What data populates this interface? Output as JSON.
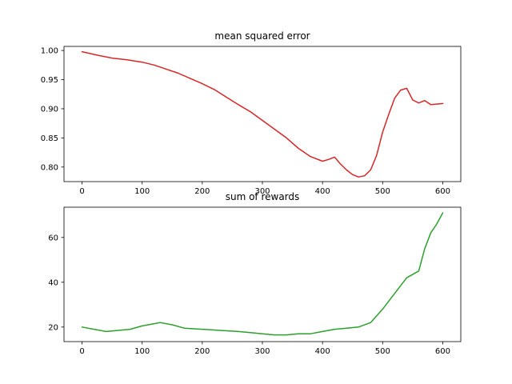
{
  "chart_data": [
    {
      "type": "line",
      "title": "mean squared error",
      "xlabel": "",
      "ylabel": "",
      "xlim": [
        -30,
        630
      ],
      "ylim": [
        0.775,
        1.007
      ],
      "xticks": [
        0,
        100,
        200,
        300,
        400,
        500,
        600
      ],
      "yticks": [
        0.8,
        0.85,
        0.9,
        0.95,
        1.0
      ],
      "ytick_labels": [
        "0.80",
        "0.85",
        "0.90",
        "0.95",
        "1.00"
      ],
      "grid": false,
      "color": "#d62728",
      "series": [
        {
          "x": [
            0,
            25,
            50,
            75,
            100,
            120,
            140,
            160,
            180,
            200,
            220,
            240,
            260,
            280,
            300,
            320,
            340,
            360,
            380,
            400,
            410,
            420,
            430,
            440,
            450,
            460,
            470,
            480,
            490,
            500,
            510,
            520,
            530,
            540,
            550,
            560,
            570,
            580,
            590,
            600
          ],
          "y": [
            0.998,
            0.992,
            0.987,
            0.984,
            0.98,
            0.975,
            0.968,
            0.961,
            0.952,
            0.943,
            0.933,
            0.92,
            0.907,
            0.895,
            0.88,
            0.865,
            0.85,
            0.832,
            0.818,
            0.81,
            0.813,
            0.817,
            0.805,
            0.795,
            0.787,
            0.783,
            0.785,
            0.795,
            0.82,
            0.86,
            0.89,
            0.918,
            0.932,
            0.935,
            0.915,
            0.91,
            0.914,
            0.907,
            0.908,
            0.909
          ]
        }
      ]
    },
    {
      "type": "line",
      "title": "sum of rewards",
      "xlabel": "",
      "ylabel": "",
      "xlim": [
        -30,
        630
      ],
      "ylim": [
        13.5,
        73.5
      ],
      "xticks": [
        0,
        100,
        200,
        300,
        400,
        500,
        600
      ],
      "yticks": [
        20,
        40,
        60
      ],
      "ytick_labels": [
        "20",
        "40",
        "60"
      ],
      "grid": false,
      "color": "#2ca02c",
      "series": [
        {
          "x": [
            0,
            20,
            40,
            60,
            80,
            100,
            120,
            130,
            150,
            170,
            200,
            230,
            260,
            280,
            300,
            320,
            340,
            360,
            380,
            400,
            420,
            440,
            460,
            480,
            500,
            520,
            540,
            560,
            570,
            580,
            590,
            600
          ],
          "y": [
            20.0,
            19.0,
            18.0,
            18.5,
            19.0,
            20.5,
            21.5,
            22.0,
            21.0,
            19.5,
            19.0,
            18.5,
            18.0,
            17.5,
            17.0,
            16.5,
            16.5,
            17.0,
            17.0,
            18.0,
            19.0,
            19.5,
            20.0,
            22.0,
            28.0,
            35.0,
            42.0,
            45.0,
            55.0,
            62.0,
            66.0,
            71.0
          ]
        }
      ]
    }
  ]
}
